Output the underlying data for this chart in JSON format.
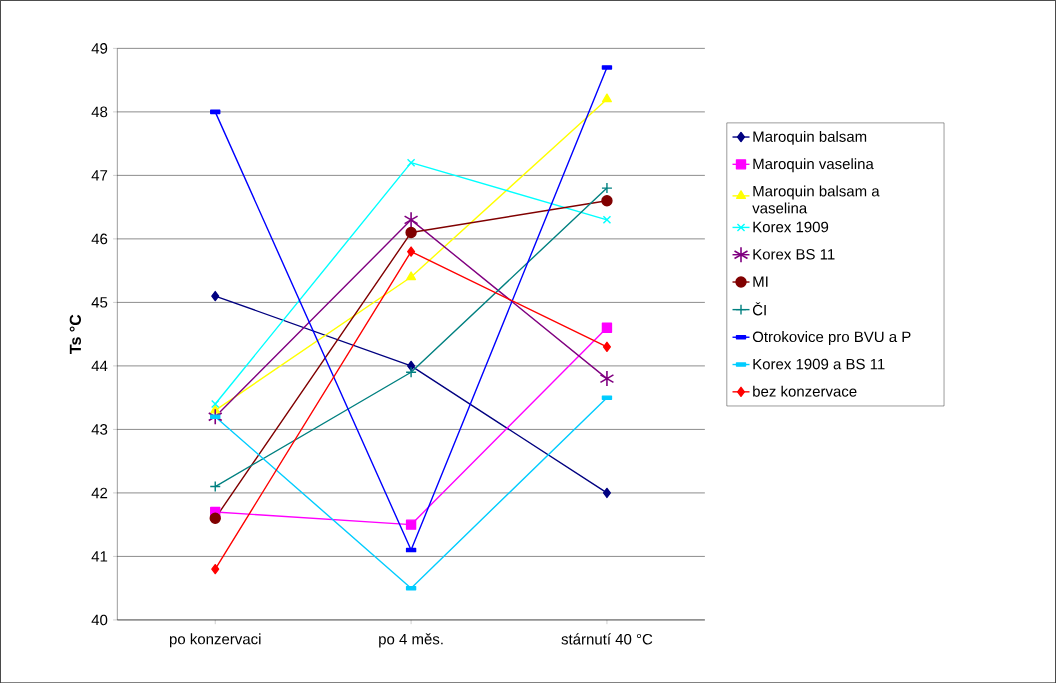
{
  "chart_data": {
    "type": "line",
    "ylabel": "Ts °C",
    "categories": [
      "po konzervaci",
      "po 4 měs.",
      "stárnutí 40 °C"
    ],
    "ylim": [
      40,
      49
    ],
    "yticks": [
      40,
      41,
      42,
      43,
      44,
      45,
      46,
      47,
      48,
      49
    ],
    "grid": "y",
    "legend": "right",
    "series": [
      {
        "name": "Maroquin balsam",
        "color": "#000080",
        "marker": "diamond",
        "values": [
          45.1,
          44.0,
          42.0
        ]
      },
      {
        "name": "Maroquin vaselina",
        "color": "#ff00ff",
        "marker": "square",
        "values": [
          41.7,
          41.5,
          44.6
        ]
      },
      {
        "name": "Maroquin balsam a vaselina",
        "color": "#ffff00",
        "marker": "triangle",
        "values": [
          43.3,
          45.4,
          48.2
        ]
      },
      {
        "name": "Korex 1909",
        "color": "#00ffff",
        "marker": "cross",
        "values": [
          43.4,
          47.2,
          46.3
        ]
      },
      {
        "name": "Korex BS 11",
        "color": "#800080",
        "marker": "cross",
        "values": [
          43.2,
          46.3,
          43.8
        ]
      },
      {
        "name": "MI",
        "color": "#800000",
        "marker": "circle",
        "values": [
          41.6,
          46.1,
          46.6
        ]
      },
      {
        "name": "ČI",
        "color": "#008080",
        "marker": "plus",
        "values": [
          42.1,
          43.9,
          46.8
        ]
      },
      {
        "name": "Otrokovice pro BVU a P",
        "color": "#0000ff",
        "marker": "square",
        "values": [
          48.0,
          41.1,
          48.7
        ]
      },
      {
        "name": "Korex 1909 a BS 11",
        "color": "#00ccff",
        "marker": "square",
        "values": [
          43.2,
          40.5,
          43.5
        ]
      },
      {
        "name": "bez konzervace",
        "color": "#ff0000",
        "marker": "diamond",
        "values": [
          40.8,
          45.8,
          44.3
        ]
      }
    ]
  }
}
